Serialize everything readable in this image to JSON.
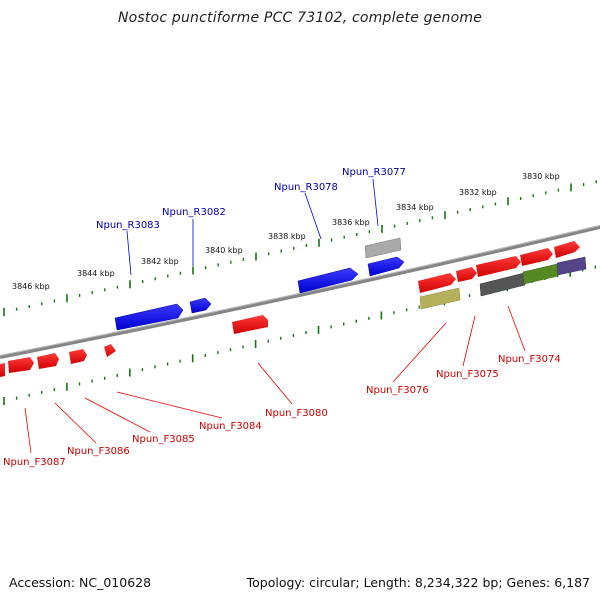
{
  "title": "Nostoc punctiforme PCC 73102, complete genome",
  "footer": {
    "accession": "Accession: NC_010628",
    "summary": "Topology: circular; Length: 8,234,322 bp; Genes: 6,187"
  },
  "scale_labels": [
    "3846 kbp",
    "3844 kbp",
    "3842 kbp",
    "3840 kbp",
    "3838 kbp",
    "3836 kbp",
    "3834 kbp",
    "3832 kbp",
    "3830 kbp"
  ],
  "reverse_labels": [
    "Npun_R3083",
    "Npun_R3082",
    "Npun_R3078",
    "Npun_R3077"
  ],
  "forward_labels": [
    "Npun_F3087",
    "Npun_F3086",
    "Npun_F3085",
    "Npun_F3084",
    "Npun_F3080",
    "Npun_F3076",
    "Npun_F3075",
    "Npun_F3074"
  ],
  "colors": {
    "reverse_gene": "#0000ee",
    "forward_gene": "#ee0000",
    "backbone": "#888888",
    "ticks": "#117711",
    "reverse_label": "#0000aa",
    "forward_label": "#cc0000"
  }
}
